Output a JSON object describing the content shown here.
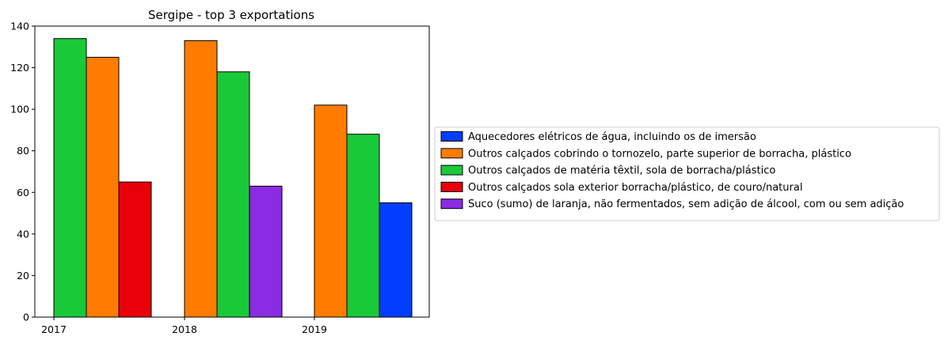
{
  "chart_data": {
    "type": "bar",
    "title": "Sergipe - top 3 exportations",
    "xlabel": "",
    "ylabel": "",
    "ylim": [
      0,
      140
    ],
    "yticks": [
      0,
      20,
      40,
      60,
      80,
      100,
      120,
      140
    ],
    "categories": [
      "2017",
      "2018",
      "2019"
    ],
    "grid": false,
    "legend_position": "right",
    "series": [
      {
        "name": "Aquecedores elétricos de água, incluindo os de imersão",
        "color": "#023eff",
        "values": [
          null,
          null,
          55
        ]
      },
      {
        "name": "Outros calçados cobrindo o tornozelo, parte superior de borracha, plástico",
        "color": "#ff7c00",
        "values": [
          125,
          133,
          102
        ]
      },
      {
        "name": "Outros calçados de matéria têxtil, sola de borracha/plástico",
        "color": "#1ac938",
        "values": [
          134,
          118,
          88
        ]
      },
      {
        "name": "Outros calçados sola exterior borracha/plástico, de couro/natural",
        "color": "#e8000b",
        "values": [
          65,
          null,
          null
        ]
      },
      {
        "name": "Suco (sumo) de laranja, não fermentados, sem adição de álcool, com ou sem adição",
        "color": "#8b2be2",
        "values": [
          null,
          63,
          null
        ]
      }
    ],
    "bar_order": [
      [
        "Outros calçados de matéria têxtil, sola de borracha/plástico",
        "Outros calçados cobrindo o tornozelo, parte superior de borracha, plástico",
        "Outros calçados sola exterior borracha/plástico, de couro/natural"
      ],
      [
        "Outros calçados cobrindo o tornozelo, parte superior de borracha, plástico",
        "Outros calçados de matéria têxtil, sola de borracha/plástico",
        "Suco (sumo) de laranja, não fermentados, sem adição de álcool, com ou sem adição"
      ],
      [
        "Outros calçados cobrindo o tornozelo, parte superior de borracha, plástico",
        "Outros calçados de matéria têxtil, sola de borracha/plástico",
        "Aquecedores elétricos de água, incluindo os de imersão"
      ]
    ]
  }
}
